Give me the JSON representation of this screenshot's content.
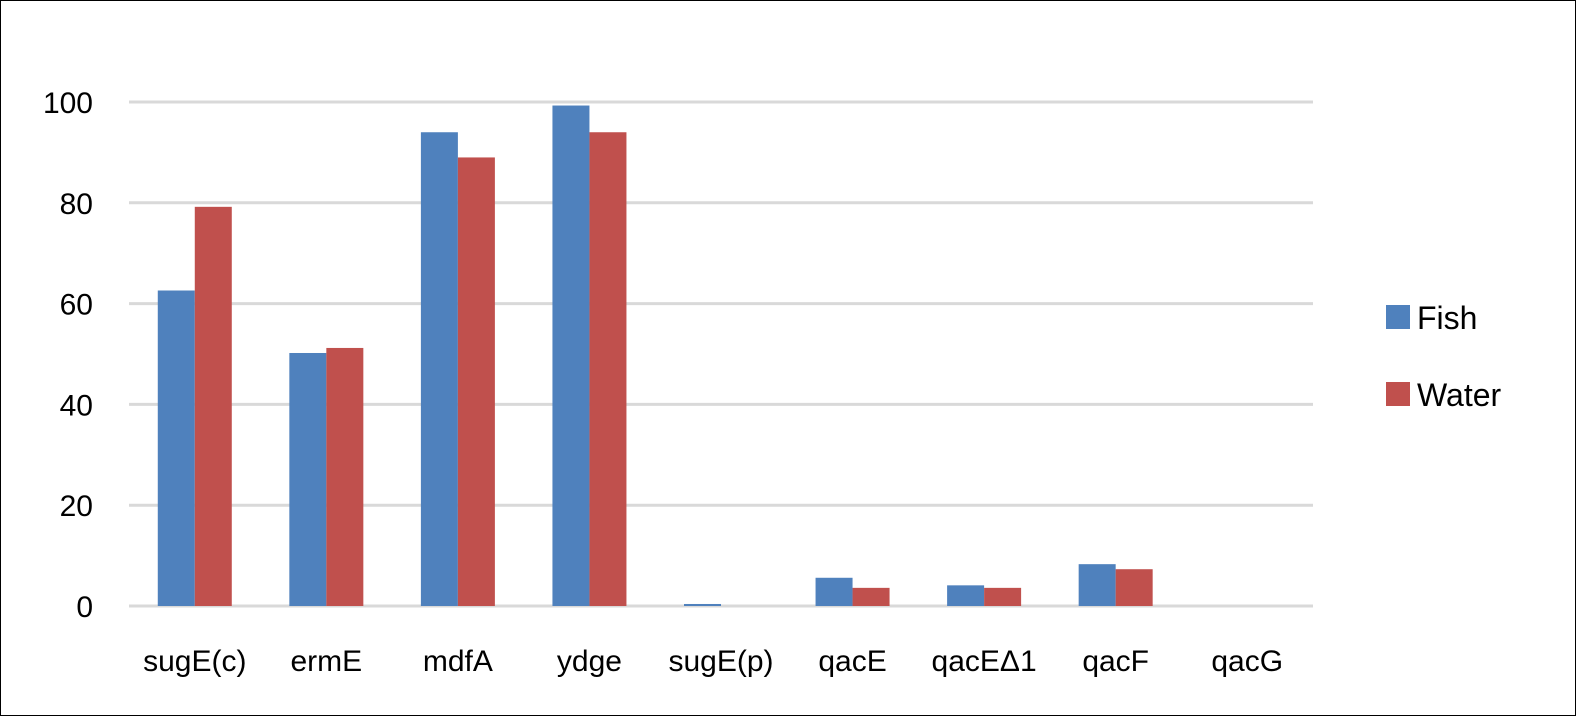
{
  "chart_data": {
    "type": "bar",
    "title": "",
    "xlabel": "",
    "ylabel": "",
    "categories": [
      "sugE(c)",
      "ermE",
      "mdfA",
      "ydge",
      "sugE(p)",
      "qacE",
      "qacEΔ1",
      "qacF",
      "qacG"
    ],
    "series": [
      {
        "name": "Fish",
        "color": "#4f81bd",
        "values": [
          62.6,
          50.2,
          94.0,
          99.3,
          0.4,
          5.6,
          4.1,
          8.3,
          0
        ]
      },
      {
        "name": "Water",
        "color": "#c0504d",
        "values": [
          79.2,
          51.2,
          89.0,
          94.0,
          0,
          3.6,
          3.6,
          7.3,
          0
        ]
      }
    ],
    "ylim": [
      0,
      100
    ],
    "yticks": [
      0,
      20,
      40,
      60,
      80,
      100
    ],
    "grid": true,
    "gridline_color": "#d9d9d9",
    "legend_position": "right"
  }
}
